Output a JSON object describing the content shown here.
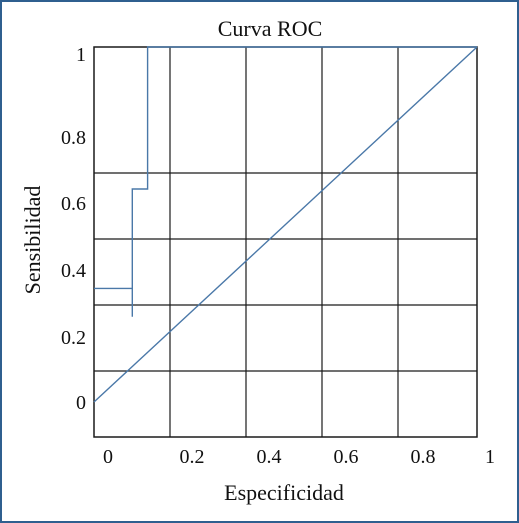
{
  "chart_data": {
    "type": "line",
    "title": "Curva ROC",
    "xlabel": "Especificidad",
    "ylabel": "Sensibilidad",
    "x_ticks": [
      "0",
      "0.2",
      "0.4",
      "0.6",
      "0.8",
      "1"
    ],
    "y_ticks": [
      "0",
      "0.2",
      "0.4",
      "0.6",
      "0.8",
      "1"
    ],
    "grid": true,
    "series": [
      {
        "type": "step",
        "color": "#4a78a8",
        "points": [
          [
            0,
            0.32
          ],
          [
            0.1,
            0.32
          ],
          [
            0.1,
            0.24
          ],
          [
            0.1,
            0.6
          ],
          [
            0.14,
            0.6
          ],
          [
            0.14,
            0.77
          ],
          [
            0.14,
            1.0
          ],
          [
            1.0,
            1.0
          ]
        ]
      },
      {
        "type": "diagonal",
        "color": "#4a78a8",
        "points": [
          [
            0,
            0.0
          ],
          [
            1.0,
            1.0
          ]
        ]
      }
    ]
  }
}
